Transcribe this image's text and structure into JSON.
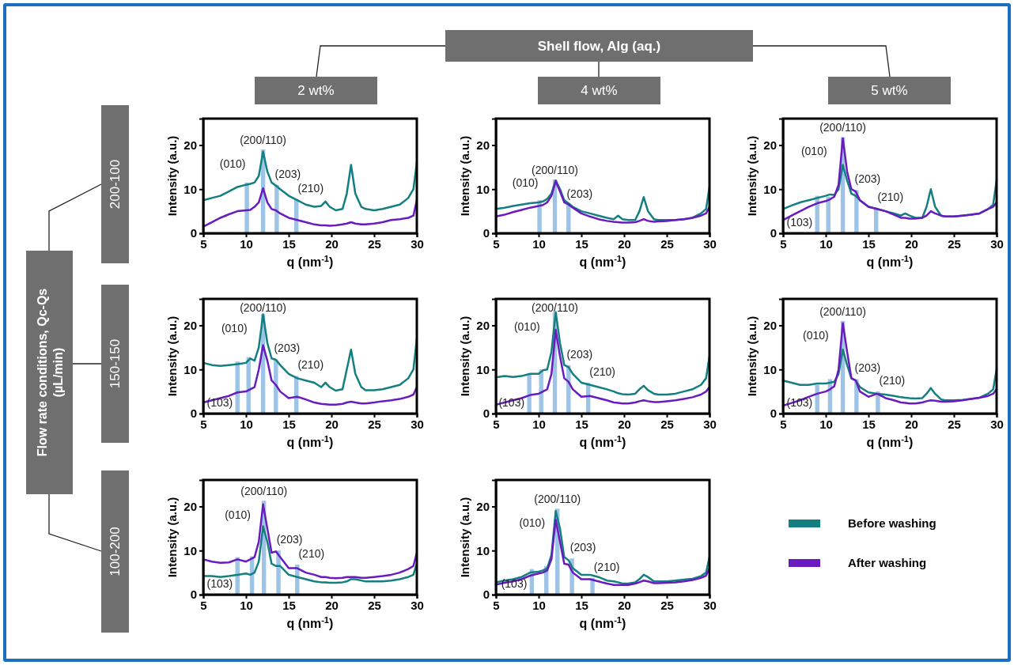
{
  "chart_data": [
    {
      "type": "line",
      "xlabel": "q (nm$^{-1}$)",
      "ylabel": "Intensity (a.u.)",
      "xlim": [
        5,
        30
      ],
      "xticks": [
        5,
        10,
        15,
        20,
        25,
        30
      ],
      "ylim": [
        0,
        26
      ],
      "yticks": [
        0,
        10,
        20
      ],
      "grid": false,
      "legend": false,
      "line_style": "solid",
      "marker": "none",
      "x": [
        5,
        6,
        7,
        8,
        9,
        10,
        10.5,
        11,
        11.5,
        12,
        12.5,
        13,
        13.5,
        14,
        15,
        16,
        17,
        18,
        18.8,
        19.3,
        19.8,
        20.5,
        21.3,
        21.8,
        22.3,
        22.8,
        23.5,
        24,
        25,
        26,
        27,
        28,
        29,
        29.6,
        30
      ],
      "series": [
        {
          "type": "bar",
          "color": "#9dc3e6",
          "x": [
            10.1,
            12,
            13.6,
            15.9
          ],
          "values": [
            11.5,
            19,
            11,
            7.7
          ]
        },
        {
          "color": "#137f80",
          "values": [
            7.5,
            8,
            8.5,
            9.5,
            10.5,
            11,
            11.2,
            11.5,
            13,
            18.5,
            14,
            11.5,
            10.8,
            10,
            8.5,
            7.5,
            6.5,
            6,
            6.2,
            7.2,
            6,
            5.2,
            5.5,
            9,
            15.5,
            9,
            6,
            5.5,
            5.2,
            5.5,
            6,
            6.5,
            8,
            10,
            16
          ]
        },
        {
          "color": "#6a1bbf",
          "values": [
            1.5,
            2.5,
            3.5,
            4.3,
            5,
            5.2,
            5.3,
            6,
            7,
            10.2,
            7,
            5.5,
            5.2,
            4.5,
            3.5,
            3,
            2.5,
            2,
            1.8,
            1.8,
            1.7,
            1.8,
            2,
            2.2,
            2.5,
            2.2,
            2,
            2,
            2.2,
            2.5,
            3,
            3.2,
            3.5,
            4,
            7.5
          ]
        }
      ],
      "annotations": [
        "(010)",
        "(200/110)",
        "(203)",
        "(210)"
      ]
    },
    {
      "type": "line",
      "xlabel": "q (nm$^{-1}$)",
      "ylabel": "Intensity (a.u.)",
      "xlim": [
        5,
        30
      ],
      "xticks": [
        5,
        10,
        15,
        20,
        25,
        30
      ],
      "ylim": [
        0,
        26
      ],
      "yticks": [
        0,
        10,
        20
      ],
      "grid": false,
      "legend": false,
      "line_style": "solid",
      "marker": "none",
      "x": [
        5,
        6,
        7,
        8,
        9,
        10,
        10.5,
        11,
        11.5,
        12,
        12.5,
        13,
        13.5,
        14,
        15,
        16,
        17,
        18,
        18.8,
        19.3,
        19.8,
        20.5,
        21.3,
        21.8,
        22.3,
        22.8,
        23.5,
        24,
        25,
        26,
        27,
        28,
        29,
        29.6,
        30
      ],
      "series": [
        {
          "type": "bar",
          "color": "#9dc3e6",
          "x": [
            10.1,
            11.9,
            13.5
          ],
          "values": [
            7.5,
            12.2,
            6.5
          ]
        },
        {
          "color": "#137f80",
          "values": [
            5.5,
            5.8,
            6.2,
            6.5,
            6.8,
            7,
            7.2,
            7.8,
            9,
            12,
            10,
            7.5,
            6.8,
            6,
            5,
            4.5,
            4,
            3.5,
            3.2,
            4,
            3.2,
            3,
            3,
            5,
            8.2,
            5,
            3.2,
            3,
            3,
            3,
            3.2,
            3.5,
            4.5,
            5.5,
            10.5
          ]
        },
        {
          "color": "#6a1bbf",
          "values": [
            3.8,
            4.2,
            4.8,
            5.3,
            5.8,
            6.2,
            6.4,
            7,
            8.5,
            11.8,
            9.5,
            7,
            6.5,
            5.8,
            4.5,
            3.8,
            3.2,
            2.8,
            2.6,
            2.5,
            2.4,
            2.4,
            2.5,
            2.8,
            3.2,
            2.8,
            2.6,
            2.7,
            2.8,
            3,
            3.2,
            3.5,
            4,
            4.5,
            6
          ]
        }
      ],
      "annotations": [
        "(010)",
        "(200/110)",
        "(203)"
      ]
    },
    {
      "type": "line",
      "xlabel": "q (nm$^{-1}$)",
      "ylabel": "Intensity (a.u.)",
      "xlim": [
        5,
        30
      ],
      "xticks": [
        5,
        10,
        15,
        20,
        25,
        30
      ],
      "ylim": [
        0,
        26
      ],
      "yticks": [
        0,
        10,
        20
      ],
      "grid": false,
      "legend": false,
      "line_style": "solid",
      "marker": "none",
      "x": [
        5,
        6,
        7,
        8,
        9,
        10,
        10.5,
        11,
        11.5,
        12,
        12.5,
        13,
        13.5,
        14,
        15,
        16,
        17,
        18,
        18.8,
        19.3,
        19.8,
        20.5,
        21.3,
        21.8,
        22.3,
        22.8,
        23.5,
        24,
        25,
        26,
        27,
        28,
        29,
        29.6,
        30
      ],
      "series": [
        {
          "type": "bar",
          "color": "#9dc3e6",
          "x": [
            9,
            10.3,
            12,
            13.6,
            15.9
          ],
          "values": [
            8.5,
            8.3,
            21.8,
            9.8,
            5.8
          ]
        },
        {
          "color": "#137f80",
          "values": [
            5.5,
            6.3,
            7,
            7.5,
            8,
            8.5,
            8.8,
            8.7,
            10,
            15.5,
            12,
            9,
            8.5,
            7.5,
            6,
            5.5,
            5,
            4.5,
            4,
            4.5,
            4,
            3.5,
            3.5,
            6,
            10,
            6,
            4,
            3.8,
            3.8,
            4,
            4.2,
            4.5,
            5.5,
            6.5,
            12
          ]
        },
        {
          "color": "#6a1bbf",
          "values": [
            3,
            4,
            5,
            6,
            6.8,
            7.3,
            7.7,
            8.3,
            11,
            21.5,
            14,
            10,
            9.5,
            7.5,
            6,
            5.5,
            5,
            4.2,
            3.5,
            3.5,
            3.3,
            3.3,
            3.5,
            4,
            5,
            4.5,
            4,
            3.8,
            3.8,
            4,
            4.2,
            4.5,
            5.5,
            6,
            7
          ]
        }
      ],
      "annotations": [
        "(103)",
        "(010)",
        "(200/110)",
        "(203)",
        "(210)"
      ]
    },
    {
      "type": "line",
      "xlabel": "q (nm$^{-1}$)",
      "ylabel": "Intensity (a.u.)",
      "xlim": [
        5,
        30
      ],
      "xticks": [
        5,
        10,
        15,
        20,
        25,
        30
      ],
      "ylim": [
        0,
        26
      ],
      "yticks": [
        0,
        10,
        20
      ],
      "grid": false,
      "legend": false,
      "line_style": "solid",
      "marker": "none",
      "x": [
        5,
        6,
        7,
        8,
        9,
        10,
        10.5,
        11,
        11.5,
        12,
        12.5,
        13,
        13.5,
        14,
        15,
        16,
        17,
        18,
        18.8,
        19.3,
        19.8,
        20.5,
        21.3,
        21.8,
        22.3,
        22.8,
        23.5,
        24,
        25,
        26,
        27,
        28,
        29,
        29.6,
        30
      ],
      "series": [
        {
          "type": "bar",
          "color": "#9dc3e6",
          "x": [
            9,
            10.3,
            12,
            13.5,
            15.9
          ],
          "values": [
            11.8,
            12.8,
            22.5,
            12.3,
            8.5
          ]
        },
        {
          "color": "#137f80",
          "values": [
            11.5,
            11,
            10.8,
            11,
            11.2,
            11.5,
            12.5,
            12,
            15,
            22.5,
            16,
            12.5,
            12.2,
            11,
            9,
            8,
            7.5,
            7,
            6,
            7,
            6,
            5.2,
            5.5,
            10,
            14.5,
            9,
            6,
            5.3,
            5.3,
            5.5,
            6,
            6.5,
            8,
            10,
            17
          ]
        },
        {
          "color": "#6a1bbf",
          "values": [
            2.5,
            3,
            3.5,
            4,
            4.8,
            5,
            5.5,
            6,
            10,
            15.5,
            12,
            7.5,
            6.5,
            5,
            3.5,
            3.8,
            3.2,
            2.5,
            2.2,
            2.1,
            2,
            2,
            2.2,
            2.5,
            2.7,
            2.5,
            2.3,
            2.3,
            2.5,
            2.8,
            3,
            3.3,
            3.8,
            4.3,
            6
          ]
        }
      ],
      "annotations": [
        "(103)",
        "(010)",
        "(200/110)",
        "(203)",
        "(210)"
      ]
    },
    {
      "type": "line",
      "xlabel": "q (nm$^{-1}$)",
      "ylabel": "Intensity (a.u.)",
      "xlim": [
        5,
        30
      ],
      "xticks": [
        5,
        10,
        15,
        20,
        25,
        30
      ],
      "ylim": [
        0,
        26
      ],
      "yticks": [
        0,
        10,
        20
      ],
      "grid": false,
      "legend": false,
      "line_style": "solid",
      "marker": "none",
      "x": [
        5,
        6,
        7,
        8,
        9,
        10,
        10.5,
        11,
        11.5,
        12,
        12.5,
        13,
        13.5,
        14,
        15,
        16,
        17,
        18,
        18.8,
        19.3,
        19.8,
        20.5,
        21.3,
        21.8,
        22.3,
        22.8,
        23.5,
        24,
        25,
        26,
        27,
        28,
        29,
        29.6,
        30
      ],
      "series": [
        {
          "type": "bar",
          "color": "#9dc3e6",
          "x": [
            8.9,
            10.3,
            11.9,
            13.5,
            15.8
          ],
          "values": [
            9,
            10,
            23,
            11,
            7
          ]
        },
        {
          "color": "#137f80",
          "values": [
            8.2,
            8.5,
            8.3,
            8.5,
            9,
            9,
            9.8,
            10,
            14,
            23,
            16,
            11,
            10.5,
            9,
            7,
            6.5,
            6,
            5.5,
            5,
            4.6,
            4.4,
            4.3,
            4.5,
            5.5,
            6.3,
            5.3,
            4.5,
            4.3,
            4.3,
            4.5,
            5,
            5.5,
            6.5,
            8,
            13
          ]
        },
        {
          "color": "#6a1bbf",
          "values": [
            2,
            2.5,
            3,
            3.5,
            4.2,
            4.5,
            5,
            5.5,
            9,
            19,
            13,
            8,
            7.2,
            5.5,
            3.8,
            4,
            3.5,
            3,
            2.5,
            2.4,
            2.3,
            2.3,
            2.5,
            2.8,
            3,
            2.8,
            2.6,
            2.6,
            2.8,
            3,
            3.3,
            3.7,
            4.3,
            5,
            6
          ]
        }
      ],
      "annotations": [
        "(103)",
        "(010)",
        "(200/110)",
        "(203)",
        "(210)"
      ]
    },
    {
      "type": "line",
      "xlabel": "q (nm$^{-1}$)",
      "ylabel": "Intensity (a.u.)",
      "xlim": [
        5,
        30
      ],
      "xticks": [
        5,
        10,
        15,
        20,
        25,
        30
      ],
      "ylim": [
        0,
        26
      ],
      "yticks": [
        0,
        10,
        20
      ],
      "grid": false,
      "legend": false,
      "line_style": "solid",
      "marker": "none",
      "x": [
        5,
        6,
        7,
        8,
        9,
        10,
        10.5,
        11,
        11.5,
        12,
        12.5,
        13,
        13.5,
        14,
        15,
        16,
        17,
        18,
        18.8,
        19.3,
        19.8,
        20.5,
        21.3,
        21.8,
        22.3,
        22.8,
        23.5,
        24,
        25,
        26,
        27,
        28,
        29,
        29.6,
        30
      ],
      "series": [
        {
          "type": "bar",
          "color": "#9dc3e6",
          "x": [
            9,
            10.5,
            12,
            13.6,
            16.1
          ],
          "values": [
            6.5,
            7.8,
            21,
            7.8,
            5
          ]
        },
        {
          "color": "#137f80",
          "values": [
            7.5,
            7,
            6.5,
            6.5,
            6.8,
            6.8,
            7,
            7.2,
            9,
            14.5,
            11,
            8,
            7.5,
            6,
            4.8,
            4.5,
            4.3,
            4,
            3.7,
            3.6,
            3.5,
            3.4,
            3.5,
            4.5,
            5.8,
            4.5,
            3.2,
            3,
            3,
            3.1,
            3.3,
            3.6,
            4.5,
            5.5,
            10
          ]
        },
        {
          "color": "#6a1bbf",
          "values": [
            1.8,
            2.4,
            3,
            3.8,
            4.5,
            5,
            5.5,
            6.2,
            10,
            20.5,
            14,
            8,
            7.5,
            5,
            3.8,
            4.5,
            3.5,
            3,
            2.5,
            2.4,
            2.3,
            2.3,
            2.5,
            2.8,
            3,
            2.9,
            2.7,
            2.7,
            2.8,
            3,
            3.3,
            3.6,
            4,
            4.5,
            5.5
          ]
        }
      ],
      "annotations": [
        "(103)",
        "(010)",
        "(200/110)",
        "(203)",
        "(210)"
      ]
    },
    {
      "type": "line",
      "xlabel": "q (nm$^{-1}$)",
      "ylabel": "Intensity (a.u.)",
      "xlim": [
        5,
        30
      ],
      "xticks": [
        5,
        10,
        15,
        20,
        25,
        30
      ],
      "ylim": [
        0,
        26
      ],
      "yticks": [
        0,
        10,
        20
      ],
      "grid": false,
      "legend": false,
      "line_style": "solid",
      "marker": "none",
      "x": [
        5,
        6,
        7,
        8,
        9,
        10,
        10.5,
        11,
        11.5,
        12,
        12.5,
        13,
        13.5,
        14,
        15,
        16,
        17,
        18,
        18.8,
        19.3,
        19.8,
        20.5,
        21.3,
        21.8,
        22.3,
        22.8,
        23.5,
        24,
        25,
        26,
        27,
        28,
        29,
        29.6,
        30
      ],
      "series": [
        {
          "type": "bar",
          "color": "#9dc3e6",
          "x": [
            9,
            10.7,
            12.1,
            13.8,
            16
          ],
          "values": [
            8.5,
            8.7,
            21.3,
            10,
            6.8
          ]
        },
        {
          "color": "#137f80",
          "values": [
            4.2,
            4.2,
            4,
            4.2,
            4.5,
            4.8,
            4.5,
            5,
            7.5,
            15.5,
            12,
            7,
            6.5,
            6.5,
            4.5,
            4,
            3.5,
            3,
            2.8,
            2.8,
            2.7,
            2.7,
            2.8,
            3,
            3.5,
            3.5,
            3.2,
            3,
            3,
            3,
            3.2,
            3.5,
            4,
            4.5,
            7
          ]
        },
        {
          "color": "#6a1bbf",
          "values": [
            8,
            7.5,
            7.2,
            7.3,
            8,
            7.5,
            8,
            8.5,
            12,
            20.5,
            15,
            9.5,
            9.8,
            8.5,
            6,
            6,
            5,
            4.5,
            4,
            4,
            3.8,
            3.7,
            3.8,
            4,
            4,
            4,
            3.8,
            3.8,
            4,
            4.2,
            4.5,
            5,
            5.8,
            6.5,
            9.5
          ]
        }
      ],
      "annotations": [
        "(103)",
        "(010)",
        "(200/110)",
        "(203)",
        "(210)"
      ]
    },
    {
      "type": "line",
      "xlabel": "q (nm$^{-1}$)",
      "ylabel": "Intensity (a.u.)",
      "xlim": [
        5,
        30
      ],
      "xticks": [
        5,
        10,
        15,
        20,
        25,
        30
      ],
      "ylim": [
        0,
        26
      ],
      "yticks": [
        0,
        10,
        20
      ],
      "grid": false,
      "legend": "right",
      "line_style": "solid",
      "marker": "none",
      "x": [
        5,
        6,
        7,
        8,
        9,
        10,
        10.5,
        11,
        11.5,
        12,
        12.5,
        13,
        13.5,
        14,
        15,
        16,
        17,
        18,
        18.8,
        19.3,
        19.8,
        20.5,
        21.3,
        21.8,
        22.3,
        22.8,
        23.5,
        24,
        25,
        26,
        27,
        28,
        29,
        29.6,
        30
      ],
      "series": [
        {
          "type": "bar",
          "color": "#9dc3e6",
          "x": [
            9.2,
            10.9,
            12.2,
            13.9,
            16.3
          ],
          "values": [
            5.8,
            6.5,
            19.5,
            8.2,
            3.8
          ]
        },
        {
          "name": "Before washing",
          "color": "#137f80",
          "values": [
            2.8,
            3.2,
            3.5,
            4,
            5,
            5.2,
            5.5,
            6,
            9,
            19,
            15,
            8.5,
            7.8,
            6,
            4.5,
            4.5,
            4,
            3.2,
            3,
            2.8,
            2.5,
            2.5,
            2.8,
            3.5,
            4.5,
            4,
            3,
            3,
            3,
            3.2,
            3.4,
            3.6,
            4.2,
            5,
            8.5
          ]
        },
        {
          "name": "After washing",
          "color": "#6a1bbf",
          "values": [
            2.3,
            2.7,
            3,
            3.5,
            4.3,
            4.8,
            5,
            5.5,
            8,
            17,
            12,
            7,
            6.8,
            5,
            3.5,
            3.5,
            3,
            2.5,
            2.2,
            2.2,
            2.2,
            2.2,
            2.5,
            2.8,
            3.2,
            3,
            2.6,
            2.6,
            2.7,
            2.8,
            3,
            3.3,
            3.8,
            4.3,
            6
          ]
        }
      ],
      "annotations": [
        "(103)",
        "(010)",
        "(200/110)",
        "(203)",
        "(210)"
      ]
    },
    {
      "type": "other",
      "annotations": [
        "Shell flow, Alg (aq.)",
        "2 wt%",
        "4 wt%",
        "5 wt%",
        "Flow rate conditions, Qc-Qs (µL/min)",
        "200-100",
        "150-150",
        "100-200"
      ]
    }
  ]
}
